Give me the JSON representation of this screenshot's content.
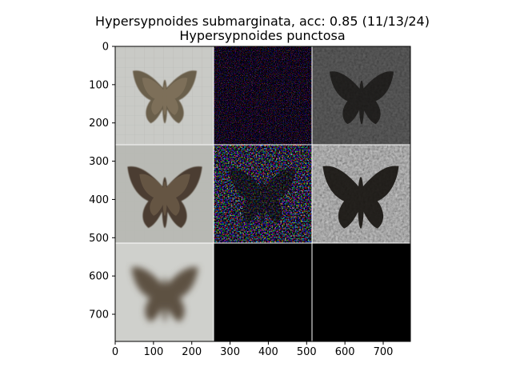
{
  "figure": {
    "title_line1": "Hypersypnoides submarginata, acc: 0.85 (11/13/24)",
    "title_line2": "Hypersypnoides punctosa"
  },
  "axes": {
    "xlim": [
      0,
      771
    ],
    "ylim": [
      771,
      0
    ],
    "xticks": [
      0,
      100,
      200,
      300,
      400,
      500,
      600,
      700
    ],
    "yticks": [
      0,
      100,
      200,
      300,
      400,
      500,
      600,
      700
    ]
  },
  "grid": {
    "rows": 3,
    "cols": 3,
    "cells": [
      {
        "row": 0,
        "col": 0,
        "content": "moth-photo-spread-wings"
      },
      {
        "row": 0,
        "col": 1,
        "content": "saliency-noise-dark"
      },
      {
        "row": 0,
        "col": 2,
        "content": "masked-moth-dark"
      },
      {
        "row": 1,
        "col": 0,
        "content": "moth-photo-pinned"
      },
      {
        "row": 1,
        "col": 1,
        "content": "saliency-noise-colorful"
      },
      {
        "row": 1,
        "col": 2,
        "content": "masked-moth-gray"
      },
      {
        "row": 2,
        "col": 0,
        "content": "moth-photo-blurred"
      },
      {
        "row": 2,
        "col": 1,
        "content": "black-empty"
      },
      {
        "row": 2,
        "col": 2,
        "content": "black-empty"
      }
    ]
  },
  "colors": {
    "background": "#ffffff",
    "axis": "#000000",
    "cell_separator": "#ffffff",
    "empty_cell": "#000000"
  }
}
